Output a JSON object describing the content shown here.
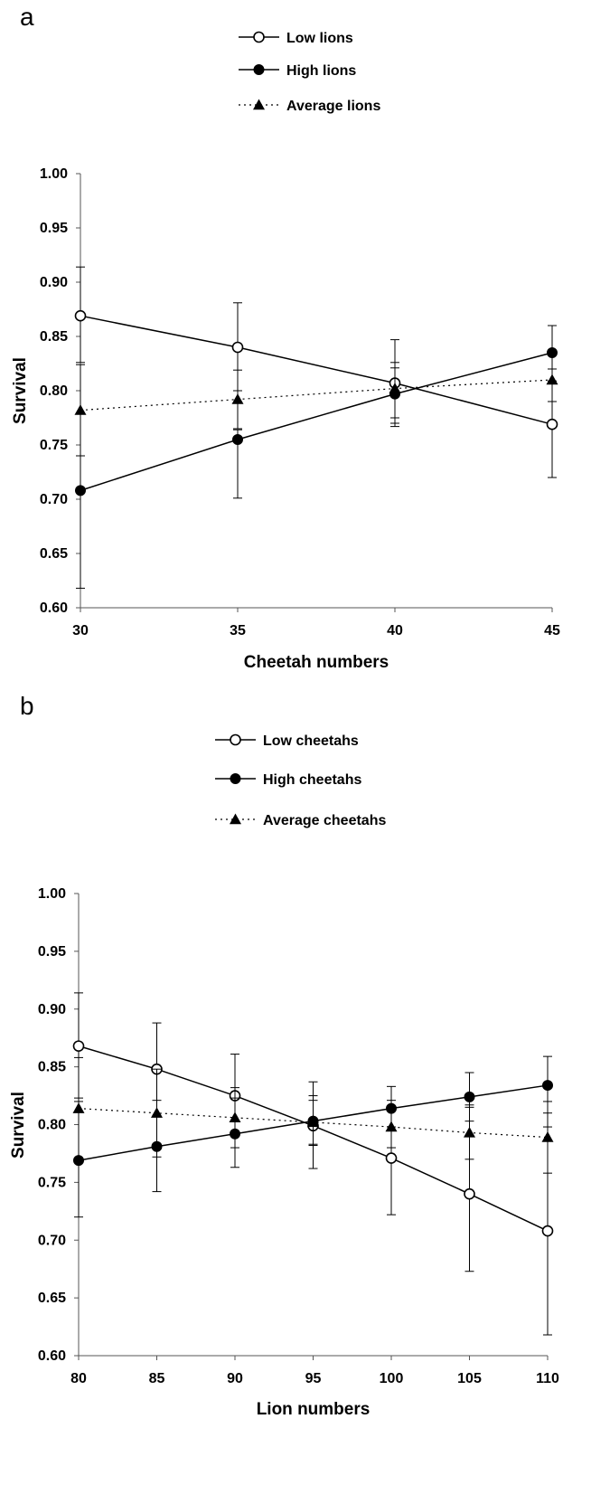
{
  "chart_data": [
    {
      "panel": "a",
      "type": "line",
      "xlabel": "Cheetah numbers",
      "ylabel": "Survival",
      "x": [
        30,
        35,
        40,
        45
      ],
      "xticks": [
        "30",
        "35",
        "40",
        "45"
      ],
      "xlim": [
        30,
        45
      ],
      "ylim": [
        0.6,
        1.0
      ],
      "yticks": [
        "0.60",
        "0.65",
        "0.70",
        "0.75",
        "0.80",
        "0.85",
        "0.90",
        "0.95",
        "1.00"
      ],
      "grid": false,
      "legend_position": "top-center",
      "series": [
        {
          "name": "Low lions",
          "marker": "open-circle",
          "line": "solid",
          "values": [
            0.869,
            0.84,
            0.807,
            0.769
          ],
          "err_low": [
            0.826,
            0.8,
            0.767,
            0.72
          ],
          "err_high": [
            0.914,
            0.881,
            0.847,
            0.809
          ]
        },
        {
          "name": "High lions",
          "marker": "filled-circle",
          "line": "solid",
          "values": [
            0.708,
            0.755,
            0.797,
            0.835
          ],
          "err_low": [
            0.618,
            0.701,
            0.77,
            0.82
          ],
          "err_high": [
            0.74,
            0.764,
            0.821,
            0.86
          ]
        },
        {
          "name": "Average lions",
          "marker": "filled-triangle",
          "line": "dotted",
          "values": [
            0.782,
            0.792,
            0.802,
            0.81
          ],
          "err_low": [
            0.74,
            0.765,
            0.775,
            0.79
          ],
          "err_high": [
            0.824,
            0.819,
            0.826,
            0.833
          ]
        }
      ]
    },
    {
      "panel": "b",
      "type": "line",
      "xlabel": "Lion numbers",
      "ylabel": "Survival",
      "x": [
        80,
        85,
        90,
        95,
        100,
        105,
        110
      ],
      "xticks": [
        "80",
        "85",
        "90",
        "95",
        "100",
        "105",
        "110"
      ],
      "xlim": [
        80,
        110
      ],
      "ylim": [
        0.6,
        1.0
      ],
      "yticks": [
        "0.60",
        "0.65",
        "0.70",
        "0.75",
        "0.80",
        "0.85",
        "0.90",
        "0.95",
        "1.00"
      ],
      "grid": false,
      "legend_position": "top-center",
      "series": [
        {
          "name": "Low cheetahs",
          "marker": "open-circle",
          "line": "solid",
          "values": [
            0.868,
            0.848,
            0.825,
            0.799,
            0.771,
            0.74,
            0.708
          ],
          "err_low": [
            0.823,
            0.808,
            0.79,
            0.762,
            0.722,
            0.673,
            0.618
          ],
          "err_high": [
            0.914,
            0.888,
            0.861,
            0.837,
            0.821,
            0.817,
            0.798
          ]
        },
        {
          "name": "High cheetahs",
          "marker": "filled-circle",
          "line": "solid",
          "values": [
            0.769,
            0.781,
            0.792,
            0.803,
            0.814,
            0.824,
            0.834
          ],
          "err_low": [
            0.72,
            0.742,
            0.763,
            0.782,
            0.798,
            0.803,
            0.81
          ],
          "err_high": [
            0.82,
            0.821,
            0.823,
            0.825,
            0.833,
            0.845,
            0.859
          ]
        },
        {
          "name": "Average cheetahs",
          "marker": "filled-triangle",
          "line": "dotted",
          "values": [
            0.814,
            0.81,
            0.806,
            0.802,
            0.798,
            0.793,
            0.789
          ],
          "err_low": [
            0.769,
            0.772,
            0.78,
            0.783,
            0.78,
            0.77,
            0.758
          ],
          "err_high": [
            0.858,
            0.848,
            0.832,
            0.821,
            0.816,
            0.815,
            0.82
          ]
        }
      ]
    }
  ]
}
